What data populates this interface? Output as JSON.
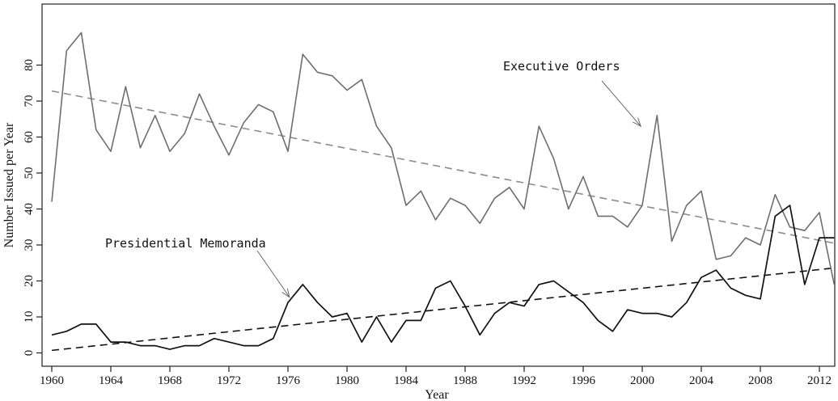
{
  "chart_data": {
    "type": "line",
    "title": "",
    "xlabel": "Year",
    "ylabel": "Number Issued per Year",
    "xlim": [
      1960,
      2013
    ],
    "ylim": [
      -2,
      90
    ],
    "grid": false,
    "x_ticks": [
      1960,
      1964,
      1968,
      1972,
      1976,
      1980,
      1984,
      1988,
      1992,
      1996,
      2000,
      2004,
      2008,
      2012
    ],
    "y_ticks": [
      0,
      10,
      20,
      30,
      40,
      50,
      60,
      70,
      80
    ],
    "x": [
      1960,
      1961,
      1962,
      1963,
      1964,
      1965,
      1966,
      1967,
      1968,
      1969,
      1970,
      1971,
      1972,
      1973,
      1974,
      1975,
      1976,
      1977,
      1978,
      1979,
      1980,
      1981,
      1982,
      1983,
      1984,
      1985,
      1986,
      1987,
      1988,
      1989,
      1990,
      1991,
      1992,
      1993,
      1994,
      1995,
      1996,
      1997,
      1998,
      1999,
      2000,
      2001,
      2002,
      2003,
      2004,
      2005,
      2006,
      2007,
      2008,
      2009,
      2010,
      2011,
      2012,
      2013
    ],
    "series": [
      {
        "name": "Executive Orders",
        "color": "#6e6e6e",
        "values": [
          42,
          84,
          89,
          62,
          56,
          74,
          57,
          66,
          56,
          61,
          72,
          63,
          55,
          64,
          69,
          67,
          56,
          83,
          78,
          77,
          73,
          76,
          63,
          57,
          41,
          45,
          37,
          43,
          41,
          36,
          43,
          46,
          40,
          63,
          54,
          40,
          49,
          38,
          38,
          35,
          41,
          66,
          31,
          41,
          45,
          26,
          27,
          32,
          30,
          44,
          35,
          34,
          39,
          19
        ]
      },
      {
        "name": "Presidential Memoranda",
        "color": "#111111",
        "values": [
          5,
          6,
          8,
          8,
          3,
          3,
          2,
          2,
          1,
          2,
          2,
          4,
          3,
          2,
          2,
          4,
          14,
          19,
          14,
          10,
          11,
          3,
          10,
          3,
          9,
          9,
          18,
          20,
          13,
          5,
          11,
          14,
          13,
          19,
          20,
          17,
          14,
          9,
          6,
          12,
          11,
          11,
          10,
          14,
          21,
          23,
          18,
          16,
          15,
          38,
          41,
          19,
          32,
          32
        ]
      }
    ],
    "trendlines": [
      {
        "series": "Executive Orders",
        "color": "#8c8c8c",
        "x": [
          1960,
          2013
        ],
        "y": [
          72.8,
          30.5
        ]
      },
      {
        "series": "Presidential Memoranda",
        "color": "#111111",
        "x": [
          1960,
          2013
        ],
        "y": [
          0.7,
          23.6
        ]
      }
    ],
    "annotations": [
      {
        "text": "Executive Orders",
        "target_x": 1999.9,
        "target_y": 63
      },
      {
        "text": "Presidential Memoranda",
        "target_x": 1976.1,
        "target_y": 15.5
      }
    ]
  }
}
